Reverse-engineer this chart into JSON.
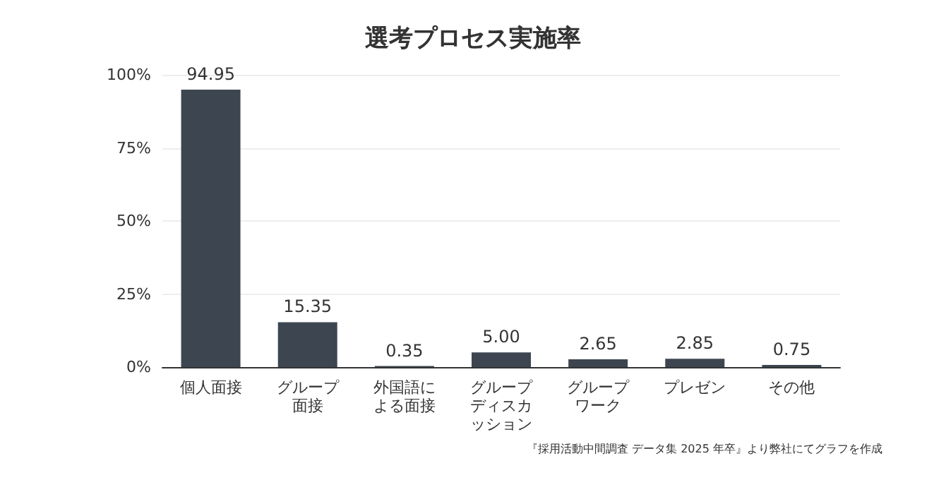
{
  "chart_data": {
    "type": "bar",
    "title": "選考プロセス実施率",
    "categories": [
      "個人面接",
      "グループ面接",
      "外国語による面接",
      "グループディスカッション",
      "グループワーク",
      "プレゼン",
      "その他"
    ],
    "values": [
      94.95,
      15.35,
      0.35,
      5.0,
      2.65,
      2.85,
      0.75
    ],
    "value_labels": [
      "94.95",
      "15.35",
      "0.35",
      "5.00",
      "2.65",
      "2.85",
      "0.75"
    ],
    "color": "#3d4650",
    "ylim": [
      0,
      100
    ],
    "yticks": [
      {
        "value": 0,
        "label": "0%"
      },
      {
        "value": 25,
        "label": "25%"
      },
      {
        "value": 50,
        "label": "50%"
      },
      {
        "value": 75,
        "label": "75%"
      },
      {
        "value": 100,
        "label": "100%"
      }
    ],
    "grid": "y",
    "annotations": [
      "『採用活動中間調査 データ集 2025 年卒』より弊社にてグラフを作成"
    ]
  }
}
